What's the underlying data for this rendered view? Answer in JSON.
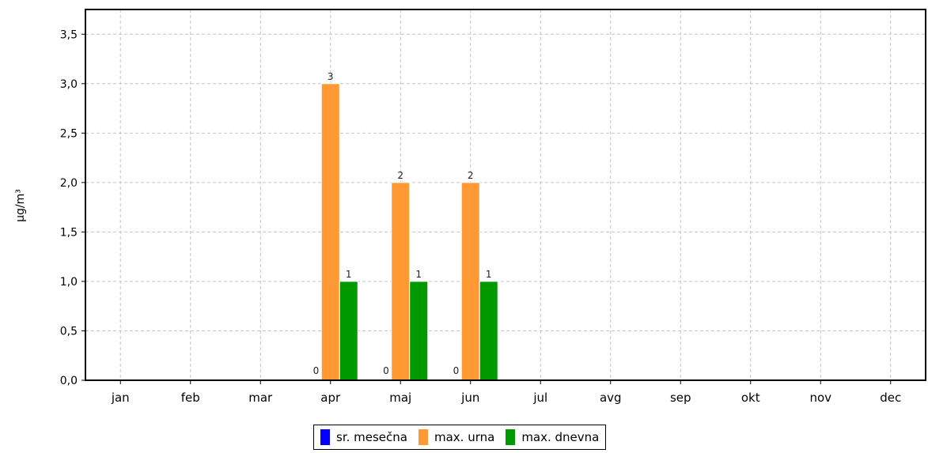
{
  "chart_data": {
    "type": "bar",
    "ylabel": "µg/m³",
    "xlabel": "",
    "categories": [
      "jan",
      "feb",
      "mar",
      "apr",
      "maj",
      "jun",
      "jul",
      "avg",
      "sep",
      "okt",
      "nov",
      "dec"
    ],
    "ylim": [
      0,
      3.75
    ],
    "yticks": [
      "0,0",
      "0,5",
      "1,0",
      "1,5",
      "2,0",
      "2,5",
      "3,0",
      "3,5"
    ],
    "grid": true,
    "legend_position": "bottom",
    "series": [
      {
        "name": "sr. mesečna",
        "color": "#0000ff",
        "values": [
          null,
          null,
          null,
          0,
          0,
          0,
          null,
          null,
          null,
          null,
          null,
          null
        ],
        "labels": [
          null,
          null,
          null,
          "0",
          "0",
          "0",
          null,
          null,
          null,
          null,
          null,
          null
        ]
      },
      {
        "name": "max. urna",
        "color": "#ff9933",
        "values": [
          null,
          null,
          null,
          3,
          2,
          2,
          null,
          null,
          null,
          null,
          null,
          null
        ],
        "labels": [
          null,
          null,
          null,
          "3",
          "2",
          "2",
          null,
          null,
          null,
          null,
          null,
          null
        ]
      },
      {
        "name": "max. dnevna",
        "color": "#009900",
        "values": [
          null,
          null,
          null,
          1,
          1,
          1,
          null,
          null,
          null,
          null,
          null,
          null
        ],
        "labels": [
          null,
          null,
          null,
          "1",
          "1",
          "1",
          null,
          null,
          null,
          null,
          null,
          null
        ]
      }
    ]
  }
}
